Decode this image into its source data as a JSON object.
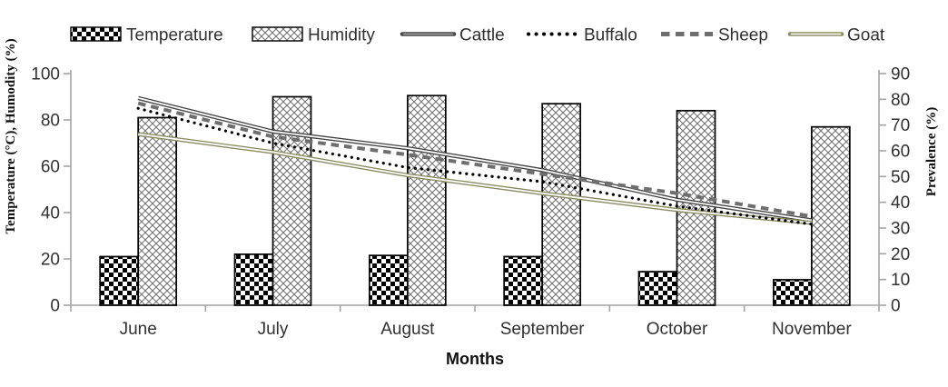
{
  "chart_data": {
    "type": "bar",
    "combo": "bar+line",
    "categories": [
      "June",
      "July",
      "August",
      "September",
      "October",
      "November"
    ],
    "bar_series": [
      {
        "name": "Temperature",
        "axis": "left",
        "pattern": "checker",
        "values": [
          21,
          22,
          21.5,
          21,
          14.5,
          11
        ]
      },
      {
        "name": "Humidity",
        "axis": "left",
        "pattern": "crosshatch",
        "values": [
          81,
          90,
          90.5,
          87,
          84,
          77
        ]
      }
    ],
    "line_series": [
      {
        "name": "Cattle",
        "axis": "right",
        "style": "double-solid",
        "color": "#454545",
        "values": [
          80.5,
          67.5,
          61,
          52.5,
          41,
          33
        ]
      },
      {
        "name": "Buffalo",
        "axis": "right",
        "style": "dotted",
        "color": "#000000",
        "values": [
          76.5,
          63,
          53.5,
          48,
          38.5,
          31.5
        ]
      },
      {
        "name": "Sheep",
        "axis": "right",
        "style": "dashed",
        "color": "#6e6e6e",
        "values": [
          78.5,
          65.5,
          58.5,
          51,
          43.5,
          34.5
        ]
      },
      {
        "name": "Goat",
        "axis": "right",
        "style": "double-solid",
        "color": "#8a8a62",
        "values": [
          66.5,
          59.5,
          50.5,
          43.5,
          37,
          32
        ]
      }
    ],
    "legend": [
      "Temperature",
      "Humidity",
      "Cattle",
      "Buffalo",
      "Sheep",
      "Goat"
    ],
    "xlabel": "Months",
    "left_axis": {
      "label": "Temperature (°C), Humodity (%)",
      "min": 0,
      "max": 100,
      "step": 20,
      "ticks": [
        "0",
        "20",
        "40",
        "60",
        "80",
        "100"
      ]
    },
    "right_axis": {
      "label": "Prevalence (%)",
      "min": 0,
      "max": 90,
      "step": 10,
      "ticks": [
        "0",
        "10",
        "20",
        "30",
        "40",
        "50",
        "60",
        "70",
        "80",
        "90"
      ]
    },
    "grid": false,
    "legend_position": "top"
  }
}
